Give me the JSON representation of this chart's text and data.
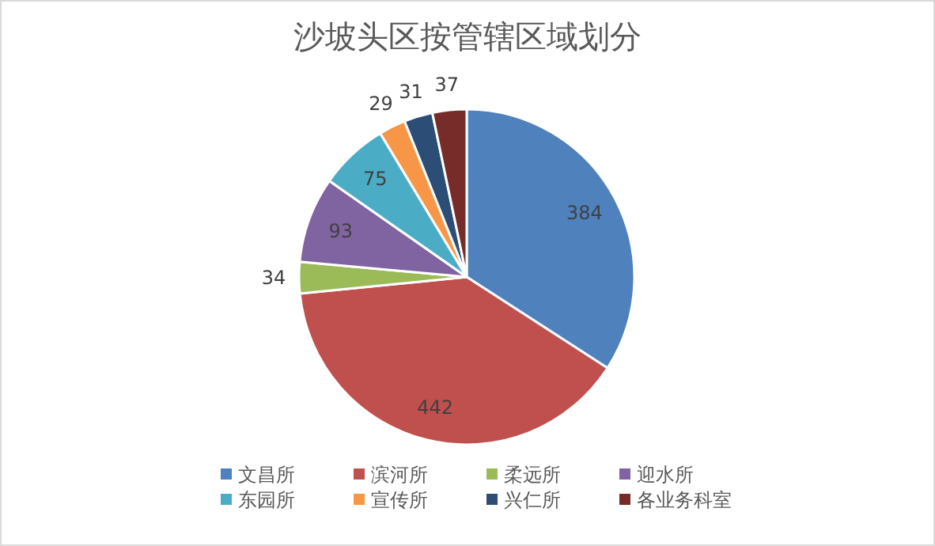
{
  "chart_data": {
    "type": "pie",
    "title": "沙坡头区按管辖区域划分",
    "categories": [
      "文昌所",
      "滨河所",
      "柔远所",
      "迎水所",
      "东园所",
      "宣传所",
      "兴仁所",
      "各业务科室"
    ],
    "values": [
      384,
      442,
      34,
      93,
      75,
      29,
      31,
      37
    ],
    "colors": [
      "#4f81bd",
      "#c0504d",
      "#9bbb59",
      "#8064a2",
      "#4bacc6",
      "#f79646",
      "#2c4d75",
      "#772c2a"
    ],
    "data_labels": true,
    "legend": "bottom"
  }
}
